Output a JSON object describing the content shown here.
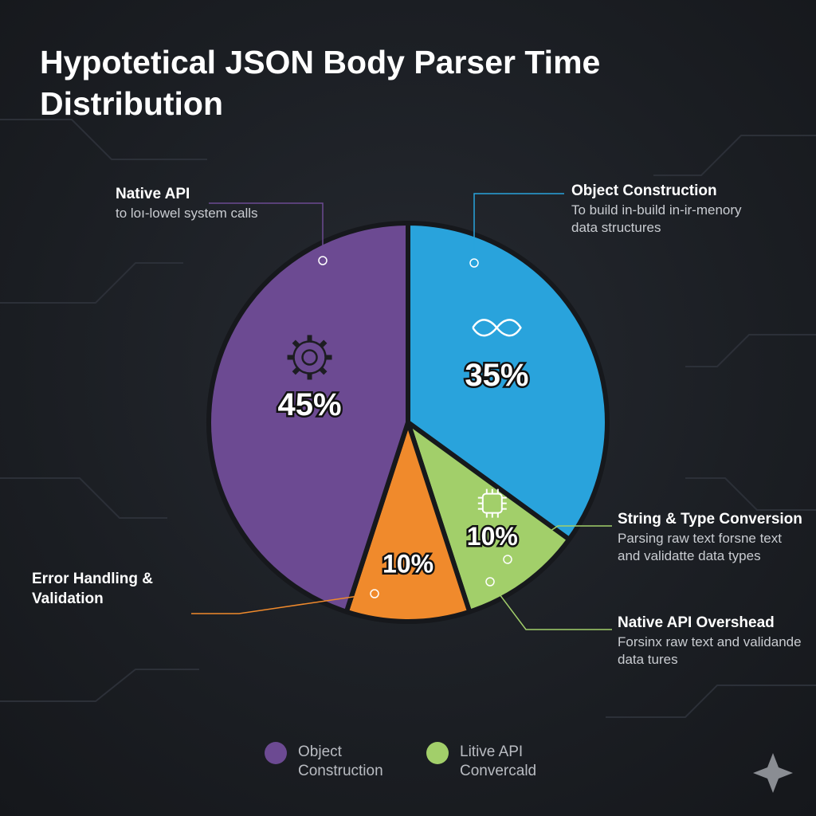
{
  "chart_data": {
    "type": "pie",
    "title": "Hypotetical JSON Body Parser Time Distribution",
    "categories": [
      "Native API",
      "Object Construction",
      "String & Type Conversion",
      "Error Handling & Validation"
    ],
    "values": [
      45,
      35,
      10,
      10
    ],
    "value_labels": [
      "45%",
      "35%",
      "10%",
      "10%"
    ],
    "colors": [
      "#6c4a92",
      "#29a3dc",
      "#a2cf6a",
      "#f08a2c"
    ],
    "descriptions": [
      "to loı-lowel system calls",
      "To build in-build in-ir-menory data structures",
      "Parsing raw text forsne text and validatte data types",
      null
    ],
    "annotations": [
      {
        "title": "Native API Overshead",
        "text": "Forsinx raw text and validande data tures"
      }
    ],
    "legend": [
      {
        "name": "Object Construction",
        "color": "#6c4a92"
      },
      {
        "name": "Litive API Convercald",
        "color": "#a2cf6a"
      }
    ]
  }
}
